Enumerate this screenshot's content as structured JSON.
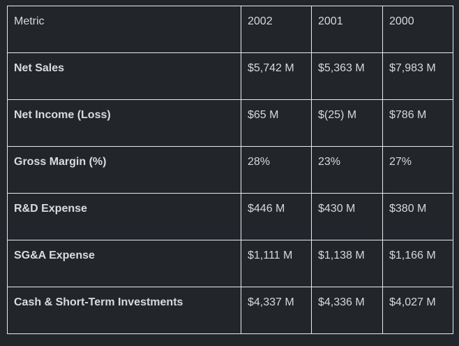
{
  "colors": {
    "page_background": "#22262b",
    "cell_background": "#22262b",
    "grid_border": "#e9eaec",
    "text": "#d6d9db"
  },
  "table": {
    "headers": [
      "Metric",
      "2002",
      "2001",
      "2000"
    ],
    "rows": [
      {
        "metric": "Net Sales",
        "values": [
          "$5,742 M",
          "$5,363 M",
          "$7,983 M"
        ]
      },
      {
        "metric": "Net Income (Loss)",
        "values": [
          "$65 M",
          "$(25) M",
          "$786 M"
        ]
      },
      {
        "metric": "Gross Margin (%)",
        "values": [
          "28%",
          "23%",
          "27%"
        ]
      },
      {
        "metric": "R&D Expense",
        "values": [
          "$446 M",
          "$430 M",
          "$380 M"
        ]
      },
      {
        "metric": "SG&A Expense",
        "values": [
          "$1,111 M",
          "$1,138 M",
          "$1,166 M"
        ]
      },
      {
        "metric": "Cash & Short-Term Investments",
        "values": [
          "$4,337 M",
          "$4,336 M",
          "$4,027 M"
        ]
      }
    ]
  },
  "chart_data": {
    "type": "table",
    "title": "",
    "columns": [
      "Metric",
      "2002",
      "2001",
      "2000"
    ],
    "rows": [
      [
        "Net Sales",
        "$5,742 M",
        "$5,363 M",
        "$7,983 M"
      ],
      [
        "Net Income (Loss)",
        "$65 M",
        "$(25) M",
        "$786 M"
      ],
      [
        "Gross Margin (%)",
        "28%",
        "23%",
        "27%"
      ],
      [
        "R&D Expense",
        "$446 M",
        "$430 M",
        "$380 M"
      ],
      [
        "SG&A Expense",
        "$1,111 M",
        "$1,138 M",
        "$1,166 M"
      ],
      [
        "Cash & Short-Term Investments",
        "$4,337 M",
        "$4,336 M",
        "$4,027 M"
      ]
    ],
    "series": [
      {
        "name": "2002",
        "values_millions": [
          5742,
          65,
          28,
          446,
          1111,
          4337
        ]
      },
      {
        "name": "2001",
        "values_millions": [
          5363,
          -25,
          23,
          430,
          1138,
          4336
        ]
      },
      {
        "name": "2000",
        "values_millions": [
          7983,
          786,
          27,
          380,
          1166,
          4027
        ]
      }
    ],
    "categories": [
      "Net Sales",
      "Net Income (Loss)",
      "Gross Margin (%)",
      "R&D Expense",
      "SG&A Expense",
      "Cash & Short-Term Investments"
    ]
  }
}
